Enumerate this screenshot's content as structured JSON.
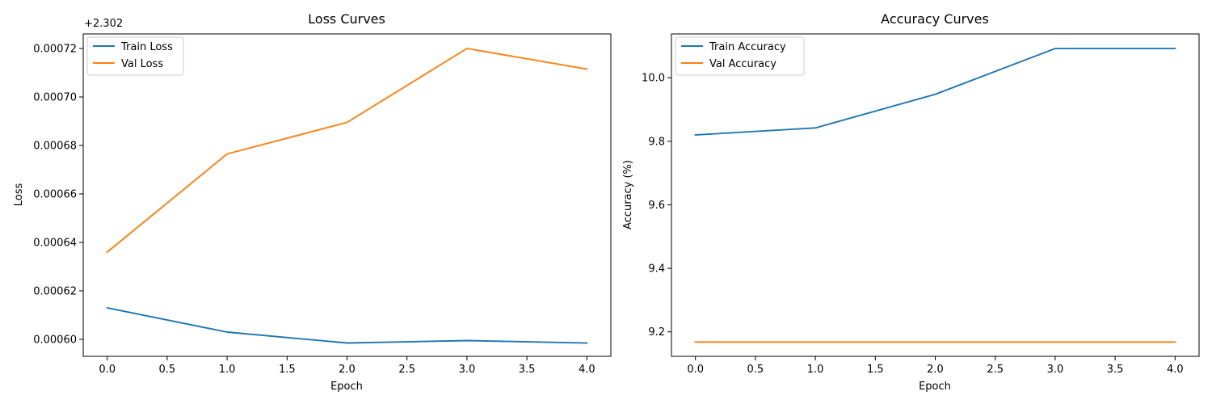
{
  "chart_data": [
    {
      "type": "line",
      "title": "Loss Curves",
      "xlabel": "Epoch",
      "ylabel": "Loss",
      "y_offset_label": "+2.302",
      "x": [
        0,
        1,
        2,
        3,
        4
      ],
      "xlim": [
        -0.2,
        4.2
      ],
      "ylim": [
        0.000593,
        0.000726
      ],
      "x_ticks": [
        0.0,
        0.5,
        1.0,
        1.5,
        2.0,
        2.5,
        3.0,
        3.5,
        4.0
      ],
      "x_tick_labels": [
        "0.0",
        "0.5",
        "1.0",
        "1.5",
        "2.0",
        "2.5",
        "3.0",
        "3.5",
        "4.0"
      ],
      "y_ticks": [
        0.0006,
        0.00062,
        0.00064,
        0.00066,
        0.00068,
        0.0007,
        0.00072
      ],
      "y_tick_labels": [
        "0.00060",
        "0.00062",
        "0.00064",
        "0.00066",
        "0.00068",
        "0.00070",
        "0.00072"
      ],
      "grid": false,
      "legend_position": "top-left",
      "series": [
        {
          "name": "Train Loss",
          "color": "#1f77b4",
          "values": [
            0.000613,
            0.000603,
            0.0005985,
            0.0005995,
            0.0005985
          ]
        },
        {
          "name": "Val Loss",
          "color": "#ff7f0e",
          "values": [
            0.000636,
            0.0006765,
            0.0006895,
            0.00072,
            0.0007115
          ]
        }
      ]
    },
    {
      "type": "line",
      "title": "Accuracy Curves",
      "xlabel": "Epoch",
      "ylabel": "Accuracy (%)",
      "x": [
        0,
        1,
        2,
        3,
        4
      ],
      "xlim": [
        -0.2,
        4.2
      ],
      "ylim": [
        9.123,
        10.138
      ],
      "x_ticks": [
        0.0,
        0.5,
        1.0,
        1.5,
        2.0,
        2.5,
        3.0,
        3.5,
        4.0
      ],
      "x_tick_labels": [
        "0.0",
        "0.5",
        "1.0",
        "1.5",
        "2.0",
        "2.5",
        "3.0",
        "3.5",
        "4.0"
      ],
      "y_ticks": [
        9.2,
        9.4,
        9.6,
        9.8,
        10.0
      ],
      "y_tick_labels": [
        "9.2",
        "9.4",
        "9.6",
        "9.8",
        "10.0"
      ],
      "grid": false,
      "legend_position": "top-left",
      "series": [
        {
          "name": "Train Accuracy",
          "color": "#1f77b4",
          "values": [
            9.82,
            9.842,
            9.948,
            10.092,
            10.092
          ]
        },
        {
          "name": "Val Accuracy",
          "color": "#ff7f0e",
          "values": [
            9.168,
            9.168,
            9.168,
            9.168,
            9.168
          ]
        }
      ]
    }
  ]
}
